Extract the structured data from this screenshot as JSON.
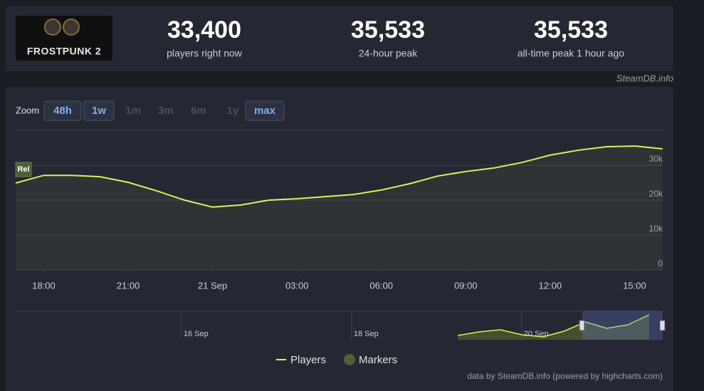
{
  "header": {
    "logo_text": "FROSTPUNK 2",
    "stats": [
      {
        "value": "33,400",
        "label": "players right now"
      },
      {
        "value": "35,533",
        "label": "24-hour peak"
      },
      {
        "value": "35,533",
        "label": "all-time peak 1 hour ago"
      }
    ],
    "source": "SteamDB.info"
  },
  "zoom": {
    "label": "Zoom",
    "buttons": [
      {
        "text": "48h",
        "enabled": true
      },
      {
        "text": "1w",
        "enabled": true
      },
      {
        "text": "1m",
        "enabled": false
      },
      {
        "text": "3m",
        "enabled": false
      },
      {
        "text": "6m",
        "enabled": false
      },
      {
        "text": "1y",
        "enabled": false
      },
      {
        "text": "max",
        "enabled": true
      }
    ]
  },
  "chart_data": [
    {
      "type": "line",
      "categories": [
        null,
        "18:00",
        null,
        null,
        "21:00",
        null,
        null,
        "21 Sep",
        null,
        null,
        "03:00",
        null,
        null,
        "06:00",
        null,
        null,
        "09:00",
        null,
        null,
        "12:00",
        null,
        null,
        "15:00",
        null
      ],
      "series": [
        {
          "name": "Players",
          "color": "#dcef5a",
          "values": [
            24900,
            27100,
            27100,
            26700,
            25100,
            22700,
            20000,
            18000,
            18600,
            20000,
            20400,
            21000,
            21600,
            22900,
            24700,
            26900,
            28200,
            29200,
            30800,
            32900,
            34300,
            35300,
            35500,
            34700
          ]
        },
        {
          "name": "Markers",
          "color": "#4e5f3b",
          "flags": [
            "Rel"
          ]
        }
      ],
      "ylim": [
        0,
        40000
      ],
      "yticks": [
        0,
        {
          "value": 10000,
          "label": "10k"
        },
        {
          "value": 20000,
          "label": "20k"
        },
        {
          "value": 30000,
          "label": "30k"
        }
      ],
      "grid": true,
      "legend": "bottom"
    },
    {
      "type": "area",
      "categories": [
        null,
        null,
        null,
        null,
        null,
        null,
        null,
        null,
        "16 Sep",
        null,
        null,
        null,
        null,
        null,
        null,
        null,
        "18 Sep",
        null,
        null,
        null,
        null,
        null,
        null,
        null,
        "20 Sep",
        null,
        null,
        null,
        null,
        null,
        null
      ],
      "values": [
        null,
        null,
        null,
        null,
        null,
        null,
        null,
        null,
        null,
        null,
        null,
        null,
        null,
        null,
        null,
        null,
        null,
        null,
        null,
        null,
        null,
        6000,
        11000,
        14000,
        7000,
        4000,
        12000,
        25000,
        16000,
        21000,
        35000
      ],
      "color": "#dcef5a",
      "ylim": [
        0,
        40000
      ]
    }
  ],
  "credits": "data by SteamDB.info (powered by highcharts.com)"
}
